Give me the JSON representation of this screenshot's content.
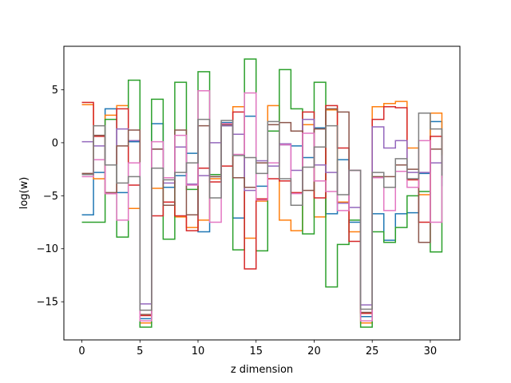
{
  "chart_data": {
    "type": "line",
    "step": "post",
    "title": "",
    "xlabel": "z dimension",
    "ylabel": "log(w)",
    "xlim": [
      -1.55,
      32.55
    ],
    "ylim": [
      -18.6,
      9.1
    ],
    "xticks": [
      0,
      5,
      10,
      15,
      20,
      25,
      30
    ],
    "yticks": [
      -15,
      -10,
      -5,
      0,
      5
    ],
    "ytick_labels": [
      "−15",
      "−10",
      "−5",
      "0",
      "5"
    ],
    "grid": false,
    "legend": "none",
    "x": [
      0,
      1,
      2,
      3,
      4,
      5,
      6,
      7,
      8,
      9,
      10,
      11,
      12,
      13,
      14,
      15,
      16,
      17,
      18,
      19,
      20,
      21,
      22,
      23,
      24,
      25,
      26,
      27,
      28,
      29,
      30,
      31
    ],
    "series": [
      {
        "color": "#1f77b4",
        "values": [
          -6.8,
          -2.8,
          3.2,
          -4.7,
          0.1,
          -16.6,
          1.8,
          -4.2,
          -3.1,
          -1.0,
          -8.4,
          -3.2,
          1.9,
          -7.1,
          2.5,
          -4.1,
          1.1,
          -0.2,
          -0.3,
          -1.4,
          1.4,
          -6.7,
          -1.6,
          -7.5,
          -16.4,
          -6.7,
          -9.2,
          -6.7,
          -6.6,
          -2.9,
          2.0,
          -4.1
        ]
      },
      {
        "color": "#ff7f0e",
        "values": [
          3.6,
          -3.4,
          2.6,
          3.5,
          -6.2,
          -17.0,
          -4.3,
          -5.6,
          -7.0,
          -8.0,
          -7.3,
          -3.4,
          1.8,
          3.4,
          -9.0,
          -5.5,
          3.5,
          -7.3,
          -8.3,
          1.7,
          -7.0,
          3.1,
          -5.6,
          -8.4,
          -17.0,
          3.4,
          3.7,
          3.9,
          -0.5,
          -4.9,
          2.8,
          -1.1
        ]
      },
      {
        "color": "#2ca02c",
        "values": [
          -7.5,
          -7.5,
          2.2,
          -8.9,
          5.9,
          -17.4,
          4.1,
          -9.1,
          5.7,
          -4.4,
          6.7,
          -3.0,
          1.6,
          -10.1,
          7.9,
          -10.2,
          1.1,
          6.9,
          3.2,
          -8.6,
          5.7,
          -13.6,
          -9.6,
          -7.3,
          -17.4,
          -8.4,
          -9.4,
          -8.0,
          -5.0,
          -4.6,
          -10.3,
          -2.8
        ]
      },
      {
        "color": "#d62728",
        "values": [
          3.8,
          0.6,
          -4.8,
          3.2,
          -4.0,
          -16.3,
          -6.9,
          -5.6,
          -6.9,
          -8.3,
          -2.4,
          -3.7,
          -2.2,
          2.9,
          -11.9,
          -5.3,
          -3.4,
          -3.6,
          -4.7,
          2.9,
          -5.2,
          3.5,
          -0.5,
          -9.3,
          -16.1,
          2.2,
          3.4,
          3.3,
          -3.5,
          -7.5,
          0.6,
          -2.7
        ]
      },
      {
        "color": "#9467bd",
        "values": [
          0.1,
          -0.3,
          -2.1,
          1.3,
          0.2,
          -15.2,
          -0.6,
          -3.8,
          -0.4,
          -3.9,
          -3.1,
          0.0,
          1.6,
          0.8,
          -4.5,
          -1.7,
          -2.2,
          -0.1,
          -2.6,
          2.2,
          -2.1,
          -2.8,
          -5.7,
          -6.1,
          -15.3,
          1.5,
          -0.5,
          0.2,
          -2.8,
          -2.8,
          -1.9,
          -3.0
        ]
      },
      {
        "color": "#8c564b",
        "values": [
          -2.9,
          0.7,
          -4.7,
          -0.3,
          1.2,
          -16.2,
          -0.6,
          -5.9,
          1.2,
          -6.8,
          1.6,
          -3.2,
          1.7,
          -3.3,
          -4.2,
          -1.9,
          1.7,
          1.9,
          1.1,
          -4.5,
          1.3,
          3.2,
          2.9,
          -2.6,
          -16.0,
          -3.2,
          -3.2,
          -2.1,
          -2.5,
          -9.4,
          -0.6,
          -3.3
        ]
      },
      {
        "color": "#e377c2",
        "values": [
          -3.2,
          -1.6,
          -4.8,
          -7.3,
          -1.9,
          -16.8,
          0.1,
          -3.3,
          0.7,
          -4.0,
          4.9,
          -7.5,
          1.8,
          -1.1,
          4.7,
          -5.4,
          -1.9,
          -0.2,
          -4.8,
          0.9,
          -3.6,
          -4.6,
          -6.4,
          -2.6,
          -16.8,
          -3.3,
          -6.4,
          -2.7,
          -4.2,
          0.2,
          -7.5,
          -1.2
        ]
      },
      {
        "color": "#7f7f7f",
        "values": [
          -3.0,
          1.6,
          -2.1,
          -3.8,
          -3.2,
          -15.8,
          -2.4,
          -3.5,
          -2.8,
          -1.9,
          2.2,
          -5.2,
          2.1,
          -1.2,
          -1.4,
          -2.9,
          2.0,
          -3.4,
          -5.9,
          -2.3,
          -0.4,
          1.6,
          -4.9,
          -2.6,
          -15.7,
          -2.8,
          -4.2,
          -1.5,
          -3.4,
          2.8,
          1.3,
          -3.1
        ]
      }
    ]
  }
}
